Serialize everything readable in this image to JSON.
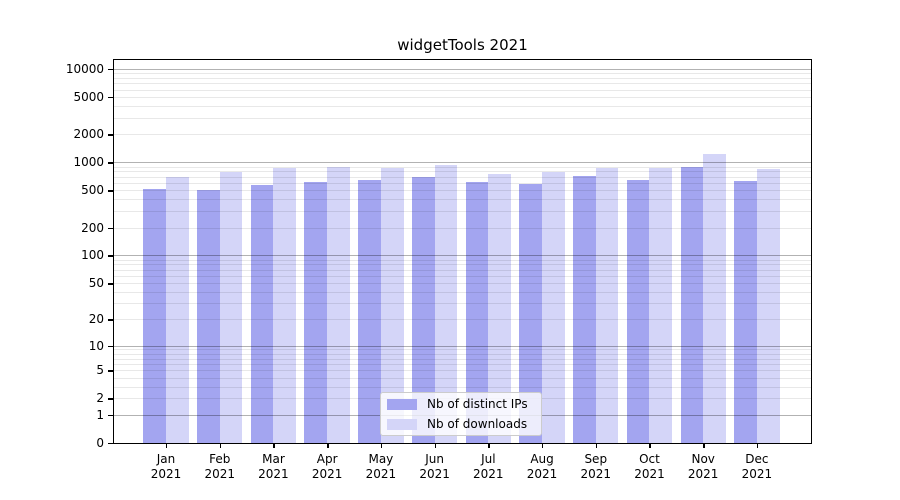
{
  "title": "widgetTools 2021",
  "colors": {
    "bar_distinct_ips": "#a3a5f0",
    "bar_downloads": "#d4d5f8",
    "axis": "#000000",
    "grid_major": "#b3b3b3",
    "grid_minor": "#e7e7e7",
    "legend_border": "#cccccc",
    "background": "#ffffff"
  },
  "chart_data": {
    "type": "bar",
    "title": "widgetTools 2021",
    "categories": [
      "Jan",
      "Feb",
      "Mar",
      "Apr",
      "May",
      "Jun",
      "Jul",
      "Aug",
      "Sep",
      "Oct",
      "Nov",
      "Dec"
    ],
    "year_label": "2021",
    "series": [
      {
        "name": "Nb of distinct IPs",
        "color": "#a3a5f0",
        "values": [
          515,
          505,
          570,
          610,
          650,
          705,
          620,
          590,
          710,
          640,
          885,
          630
        ]
      },
      {
        "name": "Nb of downloads",
        "color": "#d4d5f8",
        "values": [
          700,
          780,
          860,
          900,
          870,
          930,
          750,
          790,
          880,
          860,
          1230,
          840
        ]
      }
    ],
    "y_ticks": [
      0,
      1,
      2,
      5,
      10,
      20,
      50,
      100,
      200,
      500,
      1000,
      2000,
      5000,
      10000
    ],
    "y_scale": "log10(value+1)",
    "y_axis_top_value": 12600,
    "grid": true,
    "grid_major_at": [
      1,
      10,
      100,
      1000,
      10000
    ],
    "legend_position": "bottom-center",
    "xlabel": "",
    "ylabel": ""
  }
}
